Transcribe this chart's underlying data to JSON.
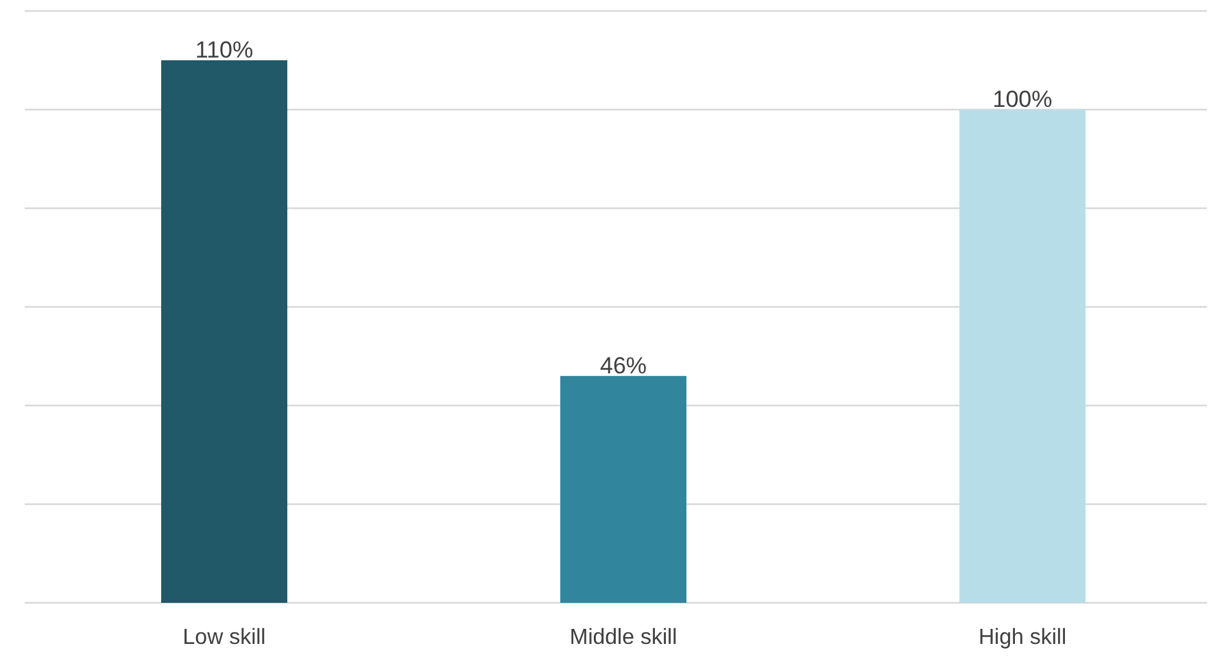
{
  "chart_data": {
    "type": "bar",
    "categories": [
      "Low skill",
      "Middle skill",
      "High skill"
    ],
    "values": [
      110,
      46,
      100
    ],
    "colors": [
      "#215968",
      "#31859c",
      "#b7dee8"
    ],
    "ylim": [
      0,
      120
    ],
    "yticks": [
      {
        "value": 0,
        "label": null
      },
      {
        "value": 20,
        "label": null
      },
      {
        "value": 40,
        "label": null
      },
      {
        "value": 60,
        "label": null
      },
      {
        "value": 80,
        "label": null
      },
      {
        "value": 100,
        "label": null
      },
      {
        "value": 120,
        "label": null
      }
    ],
    "value_labels": [
      "110%",
      "46%",
      "100%"
    ],
    "grid": "y",
    "tick_labels": "x"
  }
}
